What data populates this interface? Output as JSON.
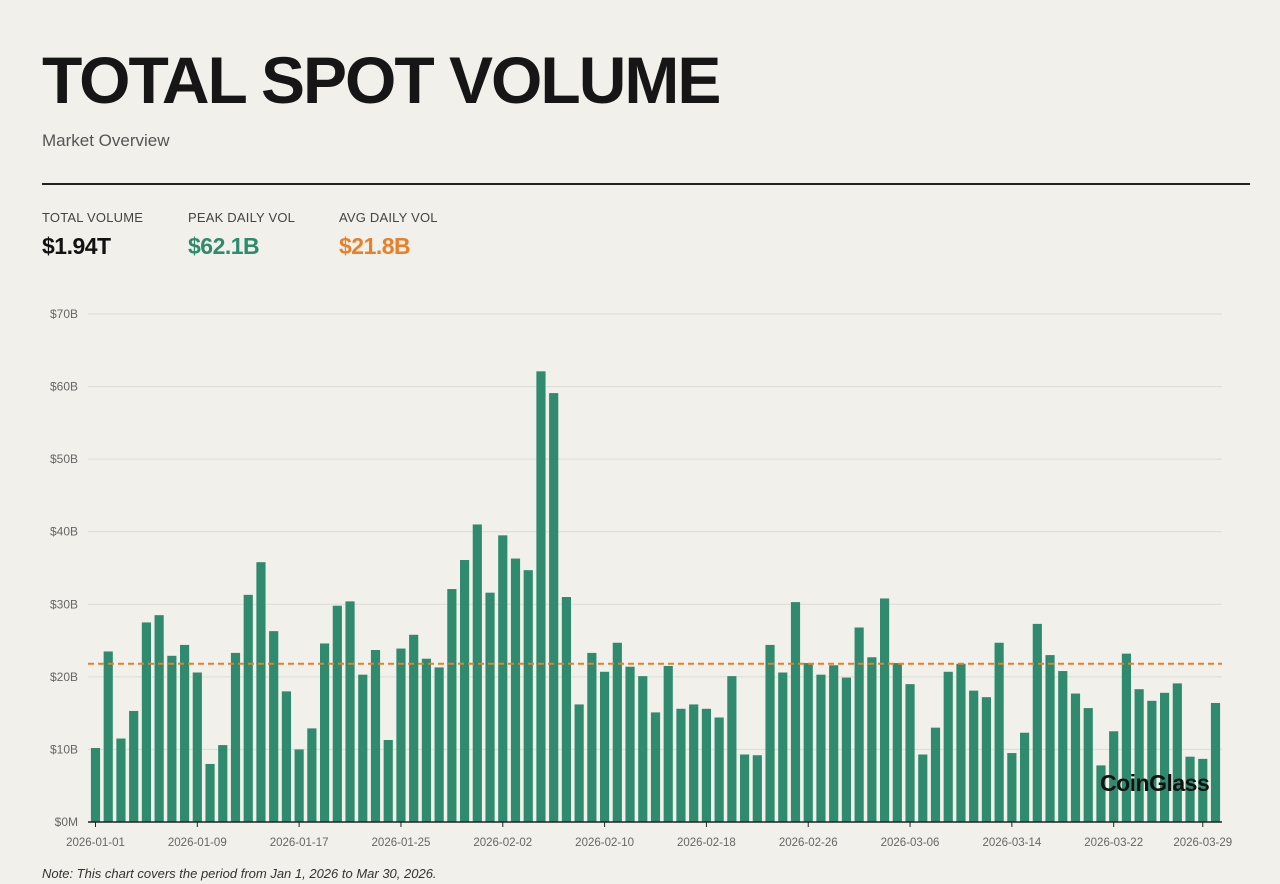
{
  "header": {
    "title": "TOTAL SPOT VOLUME",
    "subtitle": "Market Overview"
  },
  "stats": {
    "total": {
      "label": "TOTAL VOLUME",
      "value": "$1.94T"
    },
    "peak": {
      "label": "PEAK DAILY VOL",
      "value": "$62.1B"
    },
    "avg": {
      "label": "AVG DAILY VOL",
      "value": "$21.8B"
    }
  },
  "colors": {
    "bar": "#2f8a6e",
    "average_line": "#e5802b",
    "grid": "#dcdbd5",
    "axis": "#222222",
    "tick_text": "#666666"
  },
  "watermark": "CoinGlass",
  "note": "Note: This chart covers the period from Jan 1, 2026 to Mar 30, 2026.",
  "chart_data": {
    "type": "bar",
    "title": "TOTAL SPOT VOLUME",
    "xlabel": "",
    "ylabel": "",
    "unit": "billion USD",
    "ylim": [
      0,
      70
    ],
    "yticks": [
      0,
      10,
      20,
      30,
      40,
      50,
      60,
      70
    ],
    "ytick_labels": [
      "$0M",
      "$10B",
      "$20B",
      "$30B",
      "$40B",
      "$50B",
      "$60B",
      "$70B"
    ],
    "grid": true,
    "average": 21.8,
    "start_date": "2026-01-01",
    "xtick_labels": [
      "2026-01-01",
      "2026-01-09",
      "2026-01-17",
      "2026-01-25",
      "2026-02-02",
      "2026-02-10",
      "2026-02-18",
      "2026-02-26",
      "2026-03-06",
      "2026-03-14",
      "2026-03-22",
      "2026-03-29"
    ],
    "xtick_day_index": [
      0,
      8,
      16,
      24,
      32,
      40,
      48,
      56,
      64,
      72,
      80,
      87
    ],
    "values": [
      10.2,
      23.5,
      11.5,
      15.3,
      27.5,
      28.5,
      22.9,
      24.4,
      20.6,
      8.0,
      10.6,
      23.3,
      31.3,
      35.8,
      26.3,
      18.0,
      10.0,
      12.9,
      24.6,
      29.8,
      30.4,
      20.3,
      23.7,
      11.3,
      23.9,
      25.8,
      22.5,
      21.3,
      32.1,
      36.1,
      41.0,
      31.6,
      39.5,
      36.3,
      34.7,
      62.1,
      59.1,
      31.0,
      16.2,
      23.3,
      20.7,
      24.7,
      21.4,
      20.1,
      15.1,
      21.5,
      15.6,
      16.2,
      15.6,
      14.4,
      20.1,
      9.3,
      9.2,
      24.4,
      20.6,
      30.3,
      21.9,
      20.3,
      21.6,
      19.9,
      26.8,
      22.7,
      30.8,
      21.9,
      19.0,
      9.3,
      13.0,
      20.7,
      21.8,
      18.1,
      17.2,
      24.7,
      9.5,
      12.3,
      27.3,
      23.0,
      20.8,
      17.7,
      15.7,
      7.8,
      12.5,
      23.2,
      18.3,
      16.7,
      17.8,
      19.1,
      9.0,
      8.7,
      16.4
    ]
  }
}
